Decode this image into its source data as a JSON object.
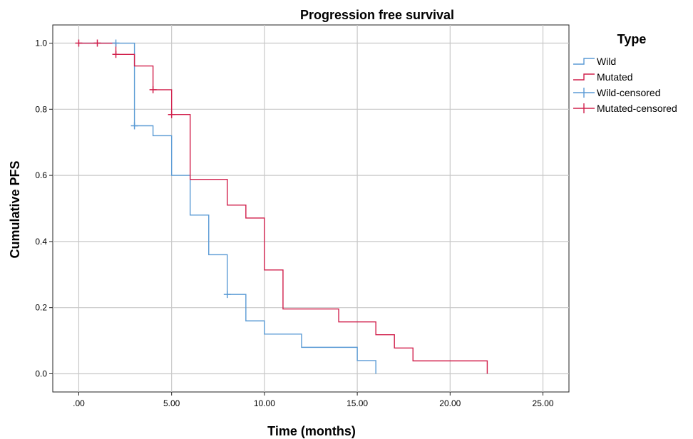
{
  "chart_data": {
    "type": "line",
    "subtype": "kaplan-meier step",
    "title": "Progression free survival",
    "xlabel": "Time (months)",
    "ylabel": "Cumulative PFS",
    "xlim": [
      -1.4,
      26.4
    ],
    "ylim": [
      -0.055,
      1.055
    ],
    "x_ticks": [
      0,
      5,
      10,
      15,
      20,
      25
    ],
    "x_tick_labels": [
      ".00",
      "5.00",
      "10.00",
      "15.00",
      "20.00",
      "25.00"
    ],
    "y_ticks": [
      0,
      0.2,
      0.4,
      0.6,
      0.8,
      1.0
    ],
    "y_tick_labels": [
      "0.0",
      "0.2",
      "0.4",
      "0.6",
      "0.8",
      "1.0"
    ],
    "grid": true,
    "legend_title": "Type",
    "legend_position": "right",
    "series": [
      {
        "name": "Wild",
        "color": "#5b9bd5",
        "steps": [
          [
            0,
            1.0
          ],
          [
            3,
            0.75
          ],
          [
            4,
            0.72
          ],
          [
            5,
            0.6
          ],
          [
            6,
            0.48
          ],
          [
            7,
            0.36
          ],
          [
            8,
            0.24
          ],
          [
            9,
            0.16
          ],
          [
            10,
            0.12
          ],
          [
            12,
            0.08
          ],
          [
            15,
            0.04
          ],
          [
            16,
            0.0
          ]
        ],
        "end_x": 16,
        "censored": [
          [
            2,
            1.0
          ],
          [
            3,
            0.75
          ],
          [
            8,
            0.24
          ]
        ]
      },
      {
        "name": "Mutated",
        "color": "#d1204c",
        "steps": [
          [
            0,
            1.0
          ],
          [
            2,
            0.966
          ],
          [
            3,
            0.931
          ],
          [
            4,
            0.859
          ],
          [
            5,
            0.784
          ],
          [
            6,
            0.588
          ],
          [
            8,
            0.51
          ],
          [
            9,
            0.471
          ],
          [
            10,
            0.314
          ],
          [
            11,
            0.196
          ],
          [
            14,
            0.157
          ],
          [
            16,
            0.118
          ],
          [
            17,
            0.078
          ],
          [
            18,
            0.039
          ],
          [
            22,
            0.0
          ]
        ],
        "end_x": 22,
        "censored": [
          [
            0,
            1.0
          ],
          [
            1,
            1.0
          ],
          [
            2,
            0.966
          ],
          [
            4,
            0.859
          ],
          [
            5,
            0.784
          ]
        ]
      }
    ],
    "legend_entries": [
      {
        "label": "Wild",
        "kind": "step",
        "color": "#5b9bd5"
      },
      {
        "label": "Mutated",
        "kind": "step",
        "color": "#d1204c"
      },
      {
        "label": "Wild-censored",
        "kind": "censor",
        "color": "#5b9bd5"
      },
      {
        "label": "Mutated-censored",
        "kind": "censor",
        "color": "#d1204c"
      }
    ]
  }
}
